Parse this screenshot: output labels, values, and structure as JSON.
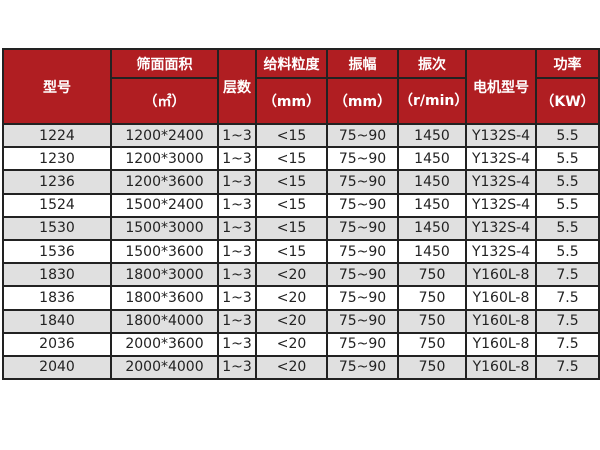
{
  "header": {
    "model": "型号",
    "area": "筛面面积",
    "area_unit": "（㎡）",
    "layers": "层数",
    "feed_size": "给料粒度",
    "feed_unit": "（mm）",
    "amplitude": "振幅",
    "amplitude_unit": "（mm）",
    "frequency": "振次",
    "frequency_unit": "（r/min）",
    "motor": "电机型号",
    "power": "功率",
    "power_unit": "（KW）"
  },
  "rows": [
    [
      "1224",
      "1200*2400",
      "1~3",
      "<15",
      "75~90",
      "1450",
      "Y132S-4",
      "5.5"
    ],
    [
      "1230",
      "1200*3000",
      "1~3",
      "<15",
      "75~90",
      "1450",
      "Y132S-4",
      "5.5"
    ],
    [
      "1236",
      "1200*3600",
      "1~3",
      "<15",
      "75~90",
      "1450",
      "Y132S-4",
      "5.5"
    ],
    [
      "1524",
      "1500*2400",
      "1~3",
      "<15",
      "75~90",
      "1450",
      "Y132S-4",
      "5.5"
    ],
    [
      "1530",
      "1500*3000",
      "1~3",
      "<15",
      "75~90",
      "1450",
      "Y132S-4",
      "5.5"
    ],
    [
      "1536",
      "1500*3600",
      "1~3",
      "<15",
      "75~90",
      "1450",
      "Y132S-4",
      "5.5"
    ],
    [
      "1830",
      "1800*3000",
      "1~3",
      "<20",
      "75~90",
      "750",
      "Y160L-8",
      "7.5"
    ],
    [
      "1836",
      "1800*3600",
      "1~3",
      "<20",
      "75~90",
      "750",
      "Y160L-8",
      "7.5"
    ],
    [
      "1840",
      "1800*4000",
      "1~3",
      "<20",
      "75~90",
      "750",
      "Y160L-8",
      "7.5"
    ],
    [
      "2036",
      "2000*3600",
      "1~3",
      "<20",
      "75~90",
      "750",
      "Y160L-8",
      "7.5"
    ],
    [
      "2040",
      "2000*4000",
      "1~3",
      "<20",
      "75~90",
      "750",
      "Y160L-8",
      "7.5"
    ]
  ],
  "colors": {
    "header_bg": "#b01e22",
    "row_alt": "#e0e0e0"
  }
}
